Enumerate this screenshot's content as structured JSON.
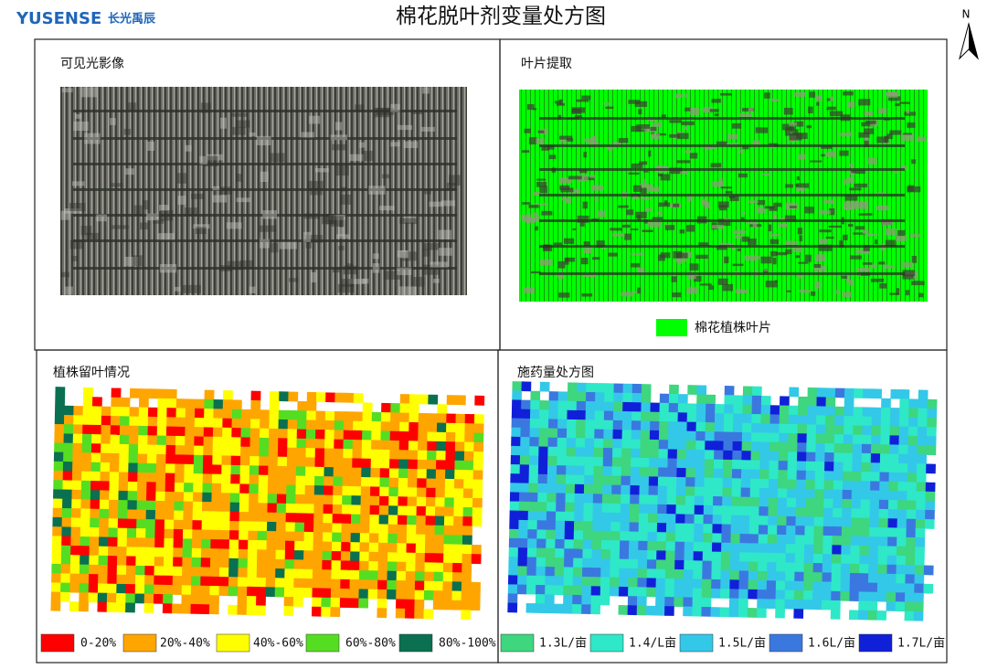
{
  "header": {
    "logo": "YUSENSE",
    "logo_cn": "长光禹辰",
    "title": "棉花脱叶剂变量处方图",
    "north": "N"
  },
  "panels": [
    {
      "label": "可见光影像"
    },
    {
      "label": "叶片提取",
      "legend": [
        {
          "label": "棉花植株叶片",
          "color": "#00ff00"
        }
      ]
    },
    {
      "label": "植株留叶情况",
      "legend": [
        {
          "label": "0-20%",
          "color": "#ff0000"
        },
        {
          "label": "20%-40%",
          "color": "#ffa500"
        },
        {
          "label": "40%-60%",
          "color": "#ffff00"
        },
        {
          "label": "60%-80%",
          "color": "#55dd22"
        },
        {
          "label": "80%-100%",
          "color": "#0a7050"
        }
      ]
    },
    {
      "label": "施药量处方图",
      "legend": [
        {
          "label": "1.3L/亩",
          "color": "#3ed67e"
        },
        {
          "label": "1.4/L亩",
          "color": "#2ee8c8"
        },
        {
          "label": "1.5L/亩",
          "color": "#33c8e8"
        },
        {
          "label": "1.6L/亩",
          "color": "#3a78e0"
        },
        {
          "label": "1.7L/亩",
          "color": "#1020d8"
        }
      ]
    }
  ]
}
